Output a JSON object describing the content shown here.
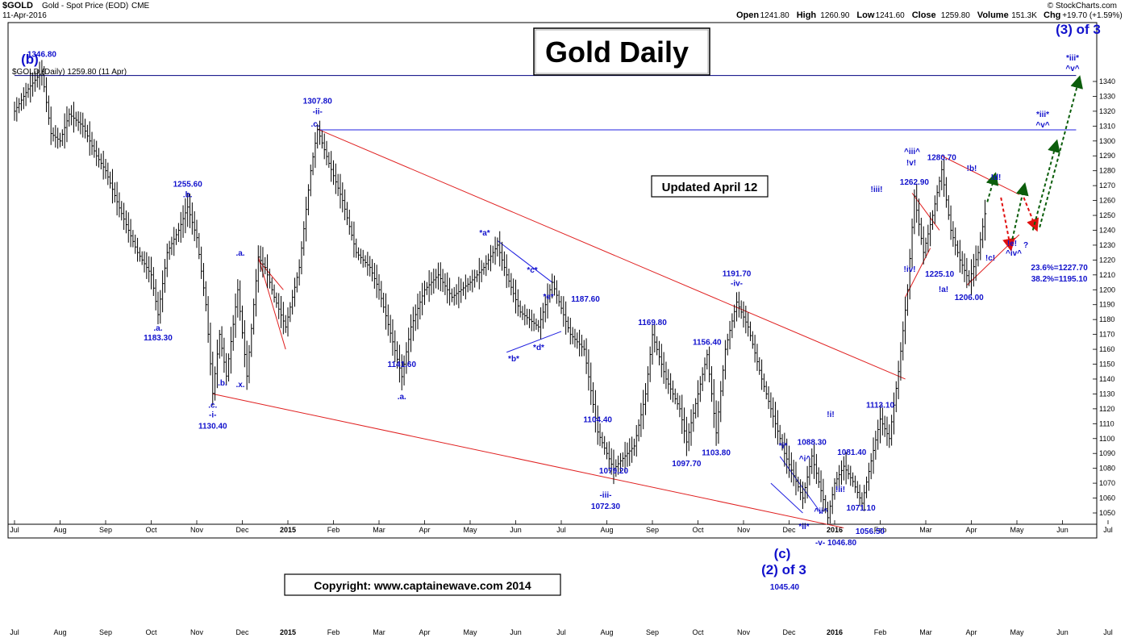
{
  "header": {
    "symbol": "$GOLD",
    "name": "Gold - Spot Price (EOD)",
    "exchange": "CME",
    "date": "11-Apr-2016",
    "source": "© StockCharts.com",
    "stats": [
      {
        "label": "Open",
        "value": "1241.80"
      },
      {
        "label": "High",
        "value": "1260.90"
      },
      {
        "label": "Low",
        "value": "1241.60"
      },
      {
        "label": "Close",
        "value": "1259.80"
      },
      {
        "label": "Volume",
        "value": "151.3K"
      },
      {
        "label": "Chg",
        "value": "+19.70 (+1.59%)"
      }
    ],
    "legend": "$GOLD (Daily) 1259.80 (11 Apr)"
  },
  "title_box": "Gold Daily",
  "updated_box": "Updated April 12",
  "copyright_box": "Copyright:   www.captainewave.com 2014",
  "chart_data": {
    "type": "line",
    "title": "Gold Daily",
    "ylim": [
      1040,
      1350
    ],
    "y_ticks": [
      1050,
      1060,
      1070,
      1080,
      1090,
      1100,
      1110,
      1120,
      1130,
      1140,
      1150,
      1160,
      1170,
      1180,
      1190,
      1200,
      1210,
      1220,
      1230,
      1240,
      1250,
      1260,
      1270,
      1280,
      1290,
      1300,
      1310,
      1320,
      1330,
      1340
    ],
    "x_months": [
      {
        "m": 0,
        "label": "Jul"
      },
      {
        "m": 1,
        "label": "Aug"
      },
      {
        "m": 2,
        "label": "Sep"
      },
      {
        "m": 3,
        "label": "Oct"
      },
      {
        "m": 4,
        "label": "Nov"
      },
      {
        "m": 5,
        "label": "Dec"
      },
      {
        "m": 6,
        "label": "2015"
      },
      {
        "m": 7,
        "label": "Feb"
      },
      {
        "m": 8,
        "label": "Mar"
      },
      {
        "m": 9,
        "label": "Apr"
      },
      {
        "m": 10,
        "label": "May"
      },
      {
        "m": 11,
        "label": "Jun"
      },
      {
        "m": 12,
        "label": "Jul"
      },
      {
        "m": 13,
        "label": "Aug"
      },
      {
        "m": 14,
        "label": "Sep"
      },
      {
        "m": 15,
        "label": "Oct"
      },
      {
        "m": 16,
        "label": "Nov"
      },
      {
        "m": 17,
        "label": "Dec"
      },
      {
        "m": 18,
        "label": "2016"
      },
      {
        "m": 19,
        "label": "Feb"
      },
      {
        "m": 20,
        "label": "Mar"
      },
      {
        "m": 21,
        "label": "Apr"
      },
      {
        "m": 22,
        "label": "May"
      },
      {
        "m": 23,
        "label": "Jun"
      },
      {
        "m": 24,
        "label": "Jul"
      }
    ],
    "series": [
      {
        "name": "$GOLD (Daily)",
        "points": [
          [
            0,
            1320
          ],
          [
            0.3,
            1335
          ],
          [
            0.6,
            1346.8
          ],
          [
            0.8,
            1305
          ],
          [
            1.0,
            1300
          ],
          [
            1.2,
            1318
          ],
          [
            1.5,
            1310
          ],
          [
            1.8,
            1290
          ],
          [
            2.0,
            1280
          ],
          [
            2.3,
            1255
          ],
          [
            2.7,
            1225
          ],
          [
            3.0,
            1210
          ],
          [
            3.15,
            1183.3
          ],
          [
            3.35,
            1225
          ],
          [
            3.6,
            1240
          ],
          [
            3.8,
            1255.6
          ],
          [
            4.0,
            1235
          ],
          [
            4.2,
            1190
          ],
          [
            4.35,
            1130.4
          ],
          [
            4.5,
            1170
          ],
          [
            4.65,
            1142
          ],
          [
            4.9,
            1200
          ],
          [
            5.1,
            1142
          ],
          [
            5.35,
            1222
          ],
          [
            5.5,
            1215
          ],
          [
            5.7,
            1195
          ],
          [
            5.95,
            1175
          ],
          [
            6.1,
            1195
          ],
          [
            6.25,
            1215
          ],
          [
            6.5,
            1280
          ],
          [
            6.65,
            1307.8
          ],
          [
            6.9,
            1285
          ],
          [
            7.2,
            1260
          ],
          [
            7.5,
            1225
          ],
          [
            7.8,
            1215
          ],
          [
            8.0,
            1200
          ],
          [
            8.3,
            1165
          ],
          [
            8.5,
            1141.6
          ],
          [
            8.7,
            1175
          ],
          [
            9.0,
            1200
          ],
          [
            9.3,
            1210
          ],
          [
            9.6,
            1195
          ],
          [
            10.0,
            1205
          ],
          [
            10.3,
            1215
          ],
          [
            10.6,
            1230
          ],
          [
            10.8,
            1210
          ],
          [
            11.1,
            1185
          ],
          [
            11.5,
            1175
          ],
          [
            11.8,
            1205
          ],
          [
            12.0,
            1187.6
          ],
          [
            12.2,
            1170
          ],
          [
            12.5,
            1160
          ],
          [
            12.8,
            1104.4
          ],
          [
            13.0,
            1090
          ],
          [
            13.15,
            1079.2
          ],
          [
            13.3,
            1085
          ],
          [
            13.6,
            1095
          ],
          [
            13.85,
            1130
          ],
          [
            14.0,
            1169.8
          ],
          [
            14.3,
            1140
          ],
          [
            14.6,
            1120
          ],
          [
            14.75,
            1097.7
          ],
          [
            15.0,
            1130
          ],
          [
            15.2,
            1156.4
          ],
          [
            15.4,
            1103.8
          ],
          [
            15.6,
            1160
          ],
          [
            15.85,
            1191.7
          ],
          [
            16.1,
            1175
          ],
          [
            16.4,
            1140
          ],
          [
            16.7,
            1110
          ],
          [
            16.9,
            1090
          ],
          [
            17.1,
            1075
          ],
          [
            17.3,
            1060
          ],
          [
            17.5,
            1088.3
          ],
          [
            17.7,
            1065
          ],
          [
            17.85,
            1046.8
          ],
          [
            18.0,
            1070
          ],
          [
            18.2,
            1081.4
          ],
          [
            18.4,
            1071.1
          ],
          [
            18.6,
            1056.5
          ],
          [
            18.8,
            1085
          ],
          [
            19.0,
            1113.1
          ],
          [
            19.2,
            1100
          ],
          [
            19.4,
            1145
          ],
          [
            19.6,
            1200
          ],
          [
            19.75,
            1262.9
          ],
          [
            19.95,
            1225.1
          ],
          [
            20.15,
            1250
          ],
          [
            20.35,
            1280.7
          ],
          [
            20.55,
            1240
          ],
          [
            20.75,
            1220
          ],
          [
            20.95,
            1206
          ],
          [
            21.15,
            1225
          ],
          [
            21.35,
            1259.8
          ]
        ]
      }
    ],
    "annotations": [
      {
        "x": 0.6,
        "y": 1346.8,
        "text": "1346.80"
      },
      {
        "x": 3.15,
        "y": 1183.3,
        "text": ".a."
      },
      {
        "x": 3.15,
        "y": 1183.3,
        "text": "1183.30"
      },
      {
        "x": 3.8,
        "y": 1255.6,
        "text": "1255.60"
      },
      {
        "x": 3.8,
        "y": 1255.6,
        "text": ".b."
      },
      {
        "x": 4.35,
        "y": 1130.4,
        "text": ".c."
      },
      {
        "x": 4.35,
        "y": 1130.4,
        "text": "-i-"
      },
      {
        "x": 4.35,
        "y": 1130.4,
        "text": "1130.40"
      },
      {
        "x": 6.65,
        "y": 1307.8,
        "text": "1307.80"
      },
      {
        "x": 6.65,
        "y": 1307.8,
        "text": "-ii-"
      },
      {
        "x": 8.5,
        "y": 1141.6,
        "text": ".a."
      },
      {
        "x": 8.5,
        "y": 1141.6,
        "text": "1141.60"
      },
      {
        "x": 12.0,
        "y": 1187.6,
        "text": "1187.60"
      },
      {
        "x": 12.8,
        "y": 1104.4,
        "text": "1104.40"
      },
      {
        "x": 13.15,
        "y": 1079.2,
        "text": "1079.20"
      },
      {
        "x": 13.15,
        "y": 1072.3,
        "text": "-iii-"
      },
      {
        "x": 13.15,
        "y": 1072.3,
        "text": "1072.30"
      },
      {
        "x": 14.0,
        "y": 1169.8,
        "text": "1169.80"
      },
      {
        "x": 14.75,
        "y": 1097.7,
        "text": "1097.70"
      },
      {
        "x": 15.2,
        "y": 1156.4,
        "text": "1156.40"
      },
      {
        "x": 15.4,
        "y": 1103.8,
        "text": "1103.80"
      },
      {
        "x": 15.85,
        "y": 1191.7,
        "text": "1191.70"
      },
      {
        "x": 15.85,
        "y": 1191.7,
        "text": "-iv-"
      },
      {
        "x": 17.5,
        "y": 1088.3,
        "text": "1088.30"
      },
      {
        "x": 17.85,
        "y": 1046.8,
        "text": "-v-  1046.80"
      },
      {
        "x": 18.2,
        "y": 1081.4,
        "text": "1081.40"
      },
      {
        "x": 18.4,
        "y": 1071.1,
        "text": "1071.10"
      },
      {
        "x": 18.6,
        "y": 1056.5,
        "text": "1056.50"
      },
      {
        "x": 19.0,
        "y": 1113.1,
        "text": "1113.10"
      },
      {
        "x": 19.75,
        "y": 1262.9,
        "text": "1262.90"
      },
      {
        "x": 19.95,
        "y": 1225.1,
        "text": "1225.10"
      },
      {
        "x": 20.35,
        "y": 1280.7,
        "text": "1280.70"
      },
      {
        "x": 20.95,
        "y": 1206.0,
        "text": "1206.00"
      },
      {
        "x": 22.4,
        "y": 1227.7,
        "text": "23.6%=1227.70"
      },
      {
        "x": 22.4,
        "y": 1195.1,
        "text": "38.2%=1195.10"
      }
    ],
    "wave_labels": [
      "(b)",
      "(c)",
      "(2) of 3",
      "(3) of 3",
      "1045.40",
      ".c.",
      ".a.",
      ".b.",
      ".x.",
      "*a*",
      "*b*",
      "*c*",
      "*d*",
      "*e*",
      "!iii!",
      "!iv!",
      "!v!",
      "!a!",
      "!b!",
      "!c!",
      "!d!",
      "!e!",
      "^iv^",
      "?",
      "^iii^",
      "*iii*",
      "^v^",
      "^i^",
      "^ii^",
      "*i*",
      "*ii*",
      "!i!",
      "!ii!"
    ],
    "grid": false
  }
}
